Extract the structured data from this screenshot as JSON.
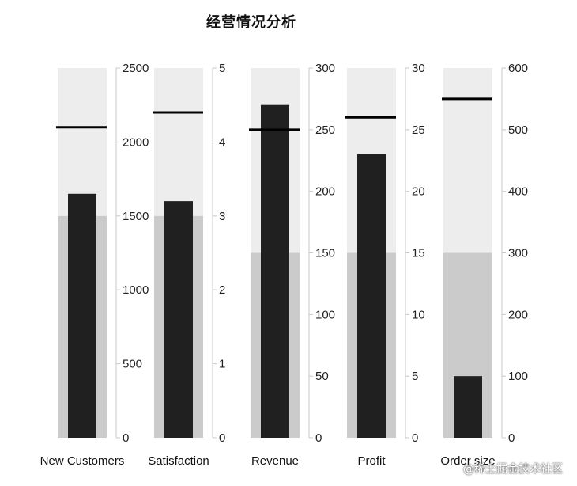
{
  "chart_data": {
    "type": "bar",
    "title": "经营情况分析",
    "subtype": "bullet",
    "colors": {
      "bar": "#202020",
      "target": "#000000",
      "band_low": "#cbcbcb",
      "band_high": "#ededed",
      "axis": "#c8c8c8"
    },
    "charts": [
      {
        "category": "New Customers",
        "value": 1650,
        "target": 2100,
        "ranges": [
          1500,
          2500
        ],
        "ylim": [
          0,
          2500
        ],
        "ticks": [
          0,
          500,
          1000,
          1500,
          2000,
          2500
        ]
      },
      {
        "category": "Satisfaction",
        "value": 3.2,
        "target": 4.4,
        "ranges": [
          3,
          5
        ],
        "ylim": [
          0,
          5
        ],
        "ticks": [
          0,
          1,
          2,
          3,
          4,
          5
        ]
      },
      {
        "category": "Revenue",
        "value": 270,
        "target": 250,
        "ranges": [
          150,
          300
        ],
        "ylim": [
          0,
          300
        ],
        "ticks": [
          0,
          50,
          100,
          150,
          200,
          250,
          300
        ]
      },
      {
        "category": "Profit",
        "value": 23,
        "target": 26,
        "ranges": [
          15,
          30
        ],
        "ylim": [
          0,
          30
        ],
        "ticks": [
          0,
          5,
          10,
          15,
          20,
          25,
          30
        ]
      },
      {
        "category": "Order size",
        "value": 100,
        "target": 550,
        "ranges": [
          300,
          600
        ],
        "ylim": [
          0,
          600
        ],
        "ticks": [
          0,
          100,
          200,
          300,
          400,
          500,
          600
        ]
      }
    ]
  },
  "watermark": "@稀土掘金技术社区"
}
